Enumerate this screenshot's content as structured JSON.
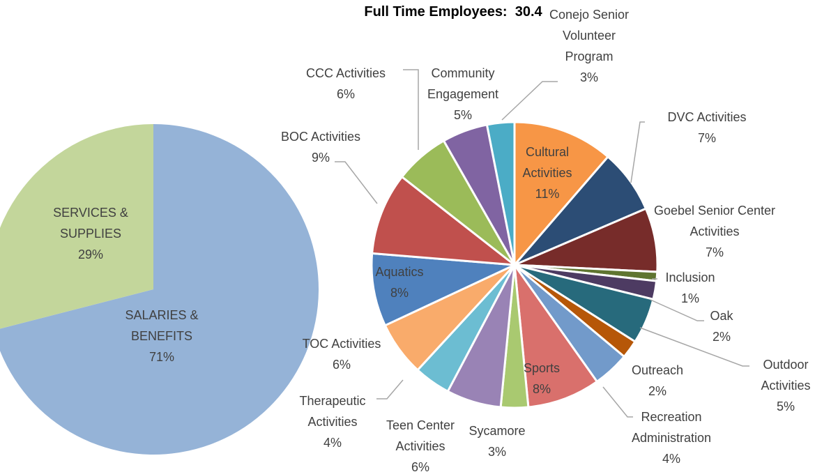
{
  "chart_data": [
    {
      "type": "pie",
      "categories": [
        "SALARIES & BENEFITS",
        "SERVICES & SUPPLIES"
      ],
      "values": [
        71,
        29
      ],
      "value_labels": [
        "71%",
        "29%"
      ],
      "colors": [
        "#95b3d7",
        "#c3d69b"
      ]
    },
    {
      "type": "pie",
      "title": "Full Time Employees:  30.4",
      "categories": [
        "Cultural Activities",
        "DVC Activities",
        "Goebel Senior Center Activities",
        "Inclusion",
        "Oak",
        "Outdoor Activities",
        "Outreach",
        "Recreation Administration",
        "Sports",
        "Sycamore",
        "Teen Center Activities",
        "Therapeutic Activities",
        "TOC Activities",
        "Aquatics",
        "BOC Activities",
        "CCC Activities",
        "Community Engagement",
        "Conejo Senior Volunteer Program"
      ],
      "values": [
        11,
        7,
        7,
        1,
        2,
        5,
        2,
        4,
        8,
        3,
        6,
        4,
        6,
        8,
        9,
        6,
        5,
        3
      ],
      "value_labels": [
        "11%",
        "7%",
        "7%",
        "1%",
        "2%",
        "5%",
        "2%",
        "4%",
        "8%",
        "3%",
        "6%",
        "4%",
        "6%",
        "8%",
        "9%",
        "6%",
        "5%",
        "3%"
      ],
      "colors": [
        "#f79646",
        "#2c4d75",
        "#772c2a",
        "#5f7530",
        "#4d3b62",
        "#276a7c",
        "#b65708",
        "#729aca",
        "#d9706c",
        "#a9c970",
        "#9983b5",
        "#6cbdd2",
        "#f9ab6b",
        "#4f81bd",
        "#c0504d",
        "#9bbb59",
        "#8064a2",
        "#4bacc6"
      ]
    }
  ]
}
